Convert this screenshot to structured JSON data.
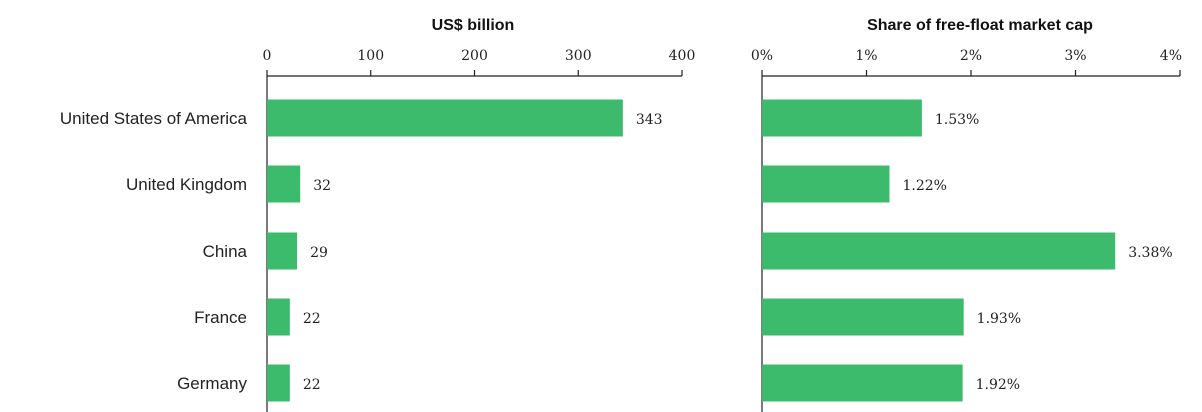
{
  "chart_data": [
    {
      "type": "bar",
      "orientation": "horizontal",
      "title": "US$ billion",
      "categories": [
        "United States of America",
        "United Kingdom",
        "China",
        "France",
        "Germany"
      ],
      "values": [
        343,
        32,
        29,
        22,
        22
      ],
      "value_labels": [
        "343",
        "32",
        "29",
        "22",
        "22"
      ],
      "xlim": [
        0,
        400
      ],
      "ticks": [
        0,
        100,
        200,
        300,
        400
      ],
      "tick_labels": [
        "0",
        "100",
        "200",
        "300",
        "400"
      ],
      "axis_position": "top",
      "grid": false,
      "color": "#3dbb6c"
    },
    {
      "type": "bar",
      "orientation": "horizontal",
      "title": "Share of free-float market cap",
      "categories": [
        "United States of America",
        "United Kingdom",
        "China",
        "France",
        "Germany"
      ],
      "values": [
        1.53,
        1.22,
        3.38,
        1.93,
        1.92
      ],
      "value_labels": [
        "1.53%",
        "1.22%",
        "3.38%",
        "1.93%",
        "1.92%"
      ],
      "xlim": [
        0,
        4
      ],
      "ticks": [
        0,
        1,
        2,
        3,
        4
      ],
      "tick_labels": [
        "0%",
        "1%",
        "2%",
        "3%",
        "4%"
      ],
      "axis_position": "top",
      "grid": false,
      "color": "#3dbb6c"
    }
  ]
}
